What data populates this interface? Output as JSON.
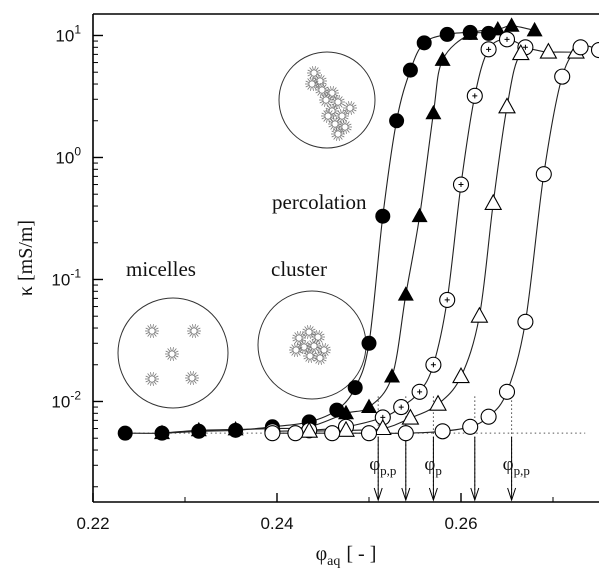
{
  "chart_data": {
    "type": "scatter",
    "title": "",
    "xlabel": "φaq [-]",
    "xlabel_main": "φ",
    "xlabel_sub": "aq",
    "xlabel_unit": "[ - ]",
    "ylabel": "κ [mS/m]",
    "xlim": [
      0.22,
      0.275
    ],
    "ylim": [
      0.0015,
      15
    ],
    "yscale": "log",
    "grid": false,
    "x_ticks": [
      {
        "value": 0.22,
        "label": "0.22"
      },
      {
        "value": 0.24,
        "label": "0.24"
      },
      {
        "value": 0.26,
        "label": "0.26"
      }
    ],
    "y_ticks": [
      {
        "value": 10,
        "base": "10",
        "exp": "1"
      },
      {
        "value": 1,
        "base": "10",
        "exp": "0"
      },
      {
        "value": 0.1,
        "base": "10",
        "exp": "-1"
      },
      {
        "value": 0.01,
        "base": "10",
        "exp": "-2"
      }
    ],
    "series": [
      {
        "marker": "filled-circle",
        "x": [
          0.2235,
          0.2275,
          0.2315,
          0.2355,
          0.2395,
          0.2435,
          0.2465,
          0.2485,
          0.25,
          0.2515,
          0.253,
          0.2545,
          0.256,
          0.2585,
          0.261,
          0.263
        ],
        "y": [
          0.0055,
          0.0055,
          0.0057,
          0.0058,
          0.0062,
          0.0068,
          0.0085,
          0.013,
          0.03,
          0.33,
          2.0,
          5.2,
          8.7,
          10.2,
          10.6,
          10.4
        ]
      },
      {
        "marker": "filled-triangle",
        "x": [
          0.2275,
          0.2315,
          0.2355,
          0.2395,
          0.2435,
          0.2475,
          0.25,
          0.2525,
          0.254,
          0.2555,
          0.257,
          0.258,
          0.261,
          0.264,
          0.2655,
          0.268
        ],
        "y": [
          0.0055,
          0.0058,
          0.0059,
          0.006,
          0.0062,
          0.008,
          0.009,
          0.016,
          0.075,
          0.33,
          2.3,
          6.3,
          10.3,
          11.2,
          12.0,
          11.0
        ]
      },
      {
        "marker": "circle-plus",
        "x": [
          0.2395,
          0.2435,
          0.2475,
          0.2515,
          0.2535,
          0.2555,
          0.257,
          0.2585,
          0.26,
          0.2615,
          0.263,
          0.265,
          0.267
        ],
        "y": [
          0.0057,
          0.0058,
          0.0062,
          0.0074,
          0.009,
          0.012,
          0.02,
          0.068,
          0.6,
          3.2,
          7.7,
          9.3,
          8.0
        ]
      },
      {
        "marker": "open-triangle",
        "x": [
          0.2435,
          0.2475,
          0.2515,
          0.2545,
          0.2575,
          0.26,
          0.262,
          0.2635,
          0.265,
          0.2665,
          0.2695,
          0.2725
        ],
        "y": [
          0.0057,
          0.0058,
          0.006,
          0.0073,
          0.0095,
          0.016,
          0.05,
          0.42,
          2.6,
          7.1,
          7.3,
          7.3
        ]
      },
      {
        "marker": "open-circle",
        "x": [
          0.2395,
          0.242,
          0.246,
          0.25,
          0.254,
          0.258,
          0.261,
          0.263,
          0.265,
          0.267,
          0.269,
          0.271,
          0.273,
          0.275
        ],
        "y": [
          0.0055,
          0.0055,
          0.0055,
          0.0055,
          0.0055,
          0.0057,
          0.0062,
          0.0075,
          0.012,
          0.045,
          0.73,
          4.6,
          8.0,
          7.6
        ]
      }
    ],
    "baseline": {
      "y": 0.0055,
      "x_from": 0.2235,
      "x_to": 0.2735
    },
    "arrows": [
      {
        "x": 0.251,
        "label_main": "φ",
        "label_sub": "p,p"
      },
      {
        "x": 0.254,
        "label_main": "",
        "label_sub": ""
      },
      {
        "x": 0.257,
        "label_main": "φ",
        "label_sub": "p"
      },
      {
        "x": 0.2615,
        "label_main": "",
        "label_sub": ""
      },
      {
        "x": 0.2655,
        "label_main": "φ",
        "label_sub": "p,p"
      }
    ],
    "annotations": {
      "percolation": "percolation",
      "micelles": "micelles",
      "cluster": "cluster"
    },
    "inset_icons": [
      "micelles-circle-icon",
      "cluster-circle-icon",
      "percolation-circle-icon"
    ],
    "colors": {
      "ink": "#000000",
      "micelle": "#777777",
      "background": "#ffffff"
    }
  }
}
